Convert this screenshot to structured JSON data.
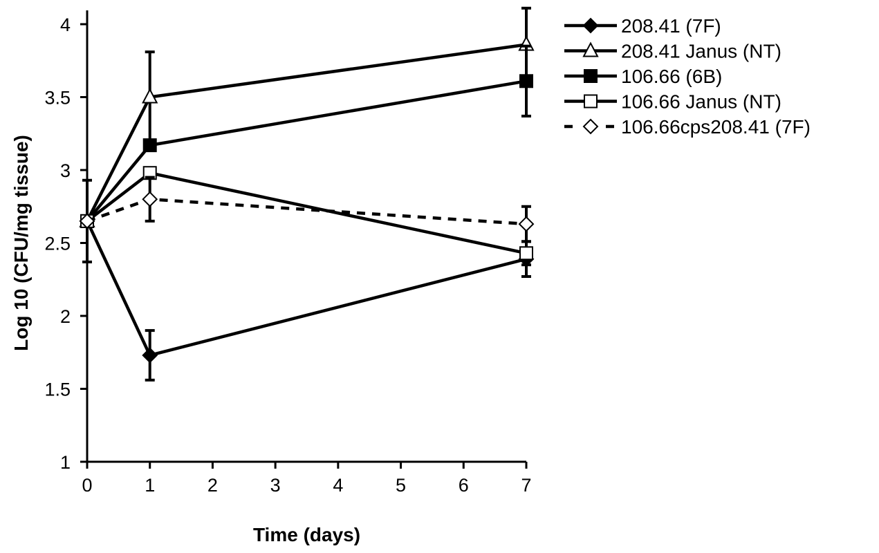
{
  "chart_data": {
    "type": "line",
    "title": "",
    "xlabel": "Time (days)",
    "ylabel": "Log 10 (CFU/mg tissue)",
    "xlim": [
      0,
      7
    ],
    "ylim": [
      1,
      4
    ],
    "x_ticks": [
      "0",
      "1",
      "2",
      "3",
      "4",
      "5",
      "6",
      "7"
    ],
    "y_ticks": [
      "1",
      "1.5",
      "2",
      "2.5",
      "3",
      "3.5",
      "4"
    ],
    "grid": false,
    "legend_position": "right",
    "series": [
      {
        "name": "208.41 (7F)",
        "marker": "diamond-filled",
        "line": "solid",
        "color": "#000000",
        "points": [
          {
            "x": 0,
            "y": 2.65,
            "err": 0
          },
          {
            "x": 1,
            "y": 1.73,
            "err": 0.17
          },
          {
            "x": 7,
            "y": 2.39,
            "err": 0.12
          }
        ]
      },
      {
        "name": "208.41 Janus (NT)",
        "marker": "triangle-open",
        "line": "solid",
        "color": "#000000",
        "points": [
          {
            "x": 0,
            "y": 2.65,
            "err": 0
          },
          {
            "x": 1,
            "y": 3.5,
            "err": 0.31
          },
          {
            "x": 7,
            "y": 3.86,
            "err": 0.25
          }
        ]
      },
      {
        "name": "106.66 (6B)",
        "marker": "square-filled",
        "line": "solid",
        "color": "#000000",
        "points": [
          {
            "x": 0,
            "y": 2.65,
            "err": 0.28
          },
          {
            "x": 1,
            "y": 3.17,
            "err": 0
          },
          {
            "x": 7,
            "y": 3.61,
            "err": 0.24
          }
        ]
      },
      {
        "name": "106.66 Janus (NT)",
        "marker": "square-open",
        "line": "solid",
        "color": "#000000",
        "points": [
          {
            "x": 0,
            "y": 2.65,
            "err": 0
          },
          {
            "x": 1,
            "y": 2.98,
            "err": 0
          },
          {
            "x": 7,
            "y": 2.43,
            "err": 0.08
          }
        ]
      },
      {
        "name": "106.66cps208.41 (7F)",
        "marker": "diamond-open",
        "line": "dashed",
        "color": "#000000",
        "points": [
          {
            "x": 0,
            "y": 2.65,
            "err": 0
          },
          {
            "x": 1,
            "y": 2.8,
            "err": 0.15
          },
          {
            "x": 7,
            "y": 2.63,
            "err": 0.12
          }
        ]
      }
    ]
  }
}
